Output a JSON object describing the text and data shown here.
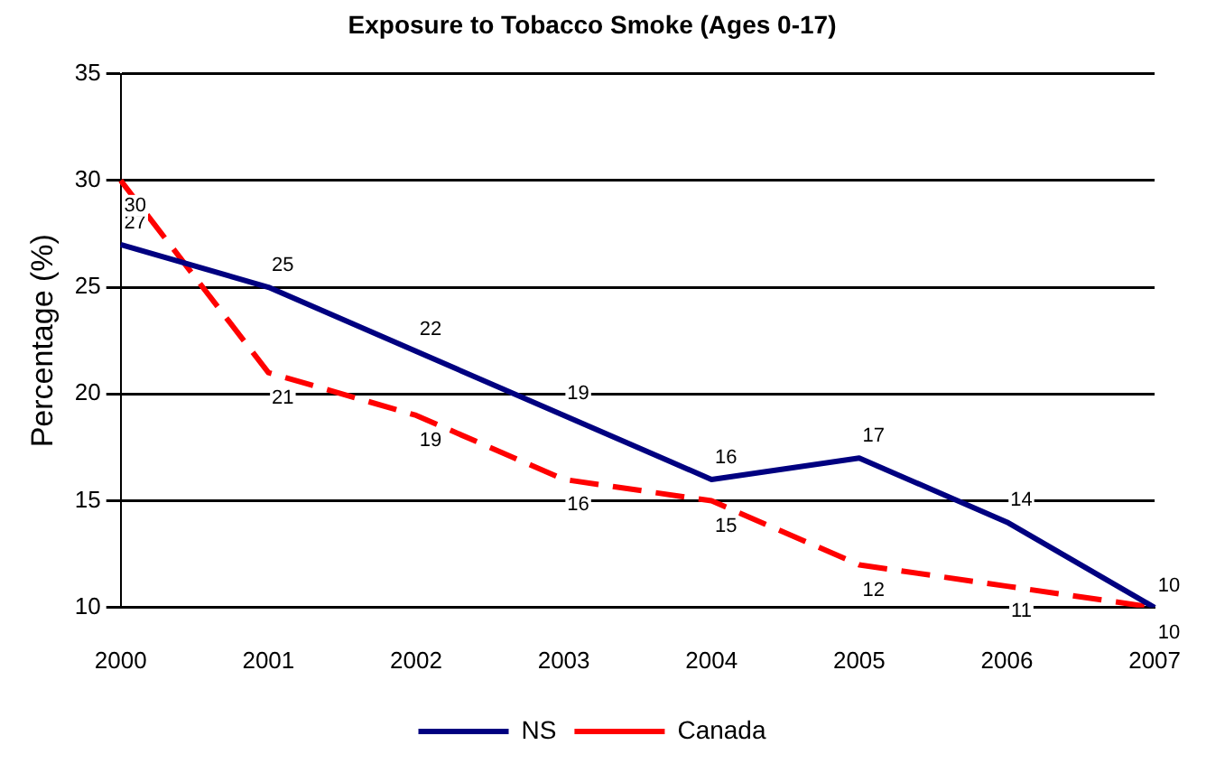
{
  "chart_data": {
    "type": "line",
    "title": "Exposure to Tobacco Smoke (Ages 0-17)",
    "ylabel": "Percentage (%)",
    "categories": [
      "2000",
      "2001",
      "2002",
      "2003",
      "2004",
      "2005",
      "2006",
      "2007"
    ],
    "series": [
      {
        "name": "NS",
        "color": "#000080",
        "values": [
          27,
          25,
          22,
          19,
          16,
          17,
          14,
          10
        ],
        "line_style": "solid"
      },
      {
        "name": "Canada",
        "color": "#ff0000",
        "values": [
          30,
          21,
          19,
          16,
          15,
          12,
          11,
          10
        ],
        "line_style": "dashed"
      }
    ],
    "ylim": [
      10,
      35
    ],
    "yticks": [
      10,
      15,
      20,
      25,
      30,
      35
    ],
    "grid": "y",
    "legend": "bottom",
    "marker": "none",
    "data_labels": true
  }
}
